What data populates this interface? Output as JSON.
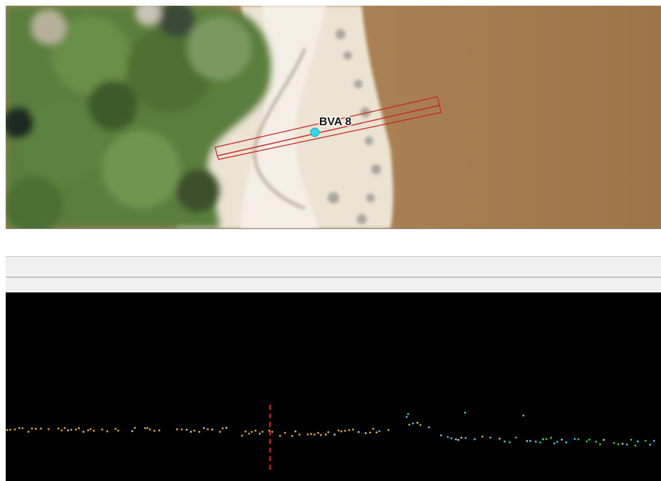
{
  "map": {
    "site_label": "BVA 8",
    "site_marker_color": "#2fd8e8",
    "transect_color": "#cc1f1f",
    "layers": [
      "aerial-imagery",
      "transect-buffer",
      "site-point"
    ]
  },
  "profile": {
    "background": "#000000",
    "cursor_line_color": "#e01b1b",
    "point_colors": [
      "#d9a441",
      "#bdbdbd",
      "#4ec2e6",
      "#3dcc3d"
    ]
  }
}
